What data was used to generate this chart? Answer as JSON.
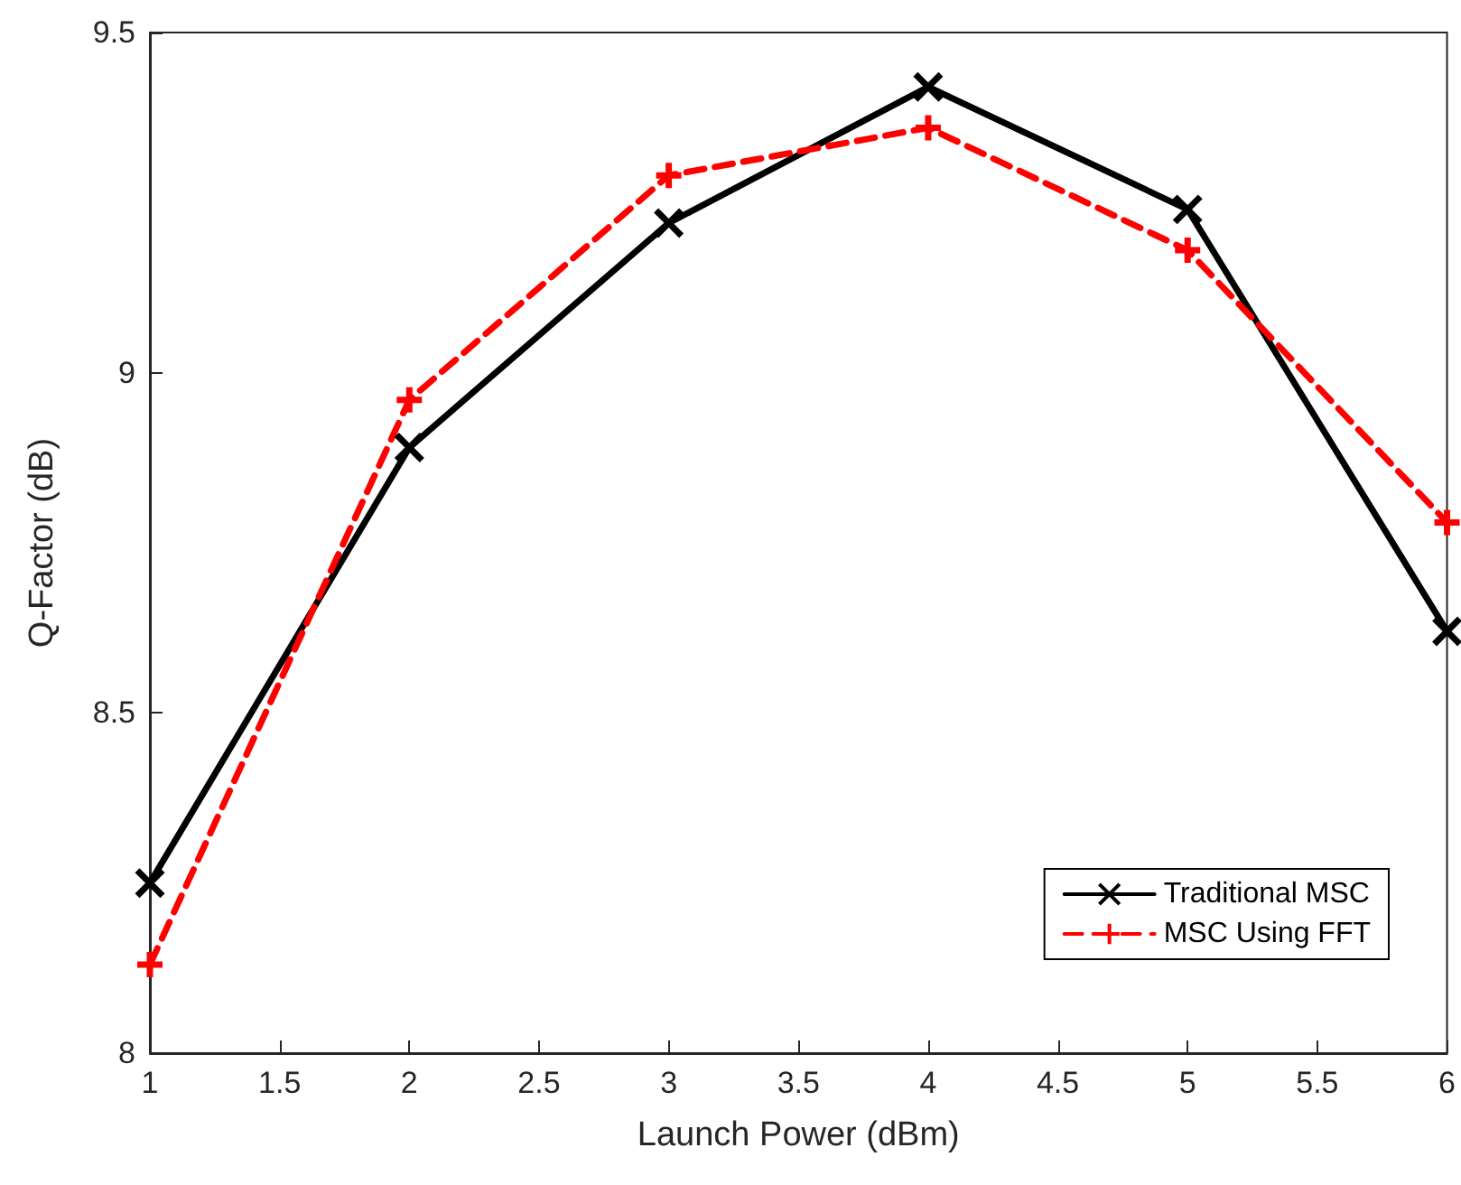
{
  "chart_data": {
    "type": "line",
    "xlabel": "Launch Power (dBm)",
    "ylabel": "Q-Factor (dB)",
    "x": [
      1,
      2,
      3,
      4,
      5,
      6
    ],
    "series": [
      {
        "name": "Traditional MSC",
        "color": "#000000",
        "values": [
          8.25,
          8.89,
          9.22,
          9.42,
          9.24,
          8.62
        ],
        "marker": "cross",
        "line_style": "solid"
      },
      {
        "name": "MSC Using FFT",
        "color": "#ff0000",
        "values": [
          8.13,
          8.96,
          9.29,
          9.36,
          9.18,
          8.78
        ],
        "marker": "plus",
        "line_style": "dashed"
      }
    ],
    "xlim": [
      1,
      6
    ],
    "xticks": [
      1,
      1.5,
      2,
      2.5,
      3,
      3.5,
      4,
      4.5,
      5,
      5.5,
      6
    ],
    "ylim": [
      8,
      9.5
    ],
    "yticks": [
      8,
      8.5,
      9,
      9.5
    ],
    "grid": false,
    "legend": "bottom right"
  }
}
